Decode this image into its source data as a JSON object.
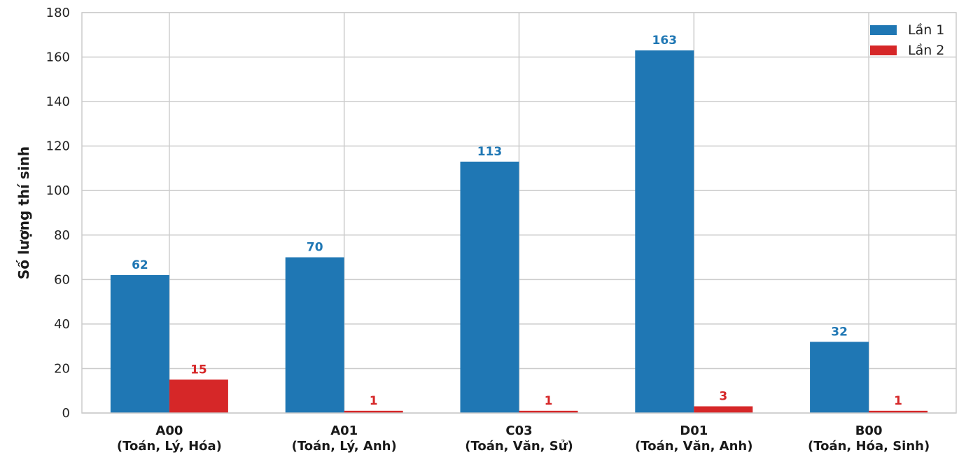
{
  "chart_data": {
    "type": "bar",
    "categories": [
      {
        "code": "A00",
        "subjects": "(Toán, Lý, Hóa)"
      },
      {
        "code": "A01",
        "subjects": "(Toán, Lý, Anh)"
      },
      {
        "code": "C03",
        "subjects": "(Toán, Văn, Sử)"
      },
      {
        "code": "D01",
        "subjects": "(Toán, Văn, Anh)"
      },
      {
        "code": "B00",
        "subjects": "(Toán, Hóa, Sinh)"
      }
    ],
    "series": [
      {
        "name": "Lần 1",
        "color": "#1f77b4",
        "values": [
          62,
          70,
          113,
          163,
          32
        ]
      },
      {
        "name": "Lần 2",
        "color": "#d62728",
        "values": [
          15,
          1,
          1,
          3,
          1
        ]
      }
    ],
    "ylabel": "Số lượng thí sinh",
    "xlabel": "",
    "ylim": [
      0,
      180
    ],
    "yticks": [
      0,
      20,
      40,
      60,
      80,
      100,
      120,
      140,
      160,
      180
    ],
    "grid": true,
    "legend": "top-right"
  }
}
